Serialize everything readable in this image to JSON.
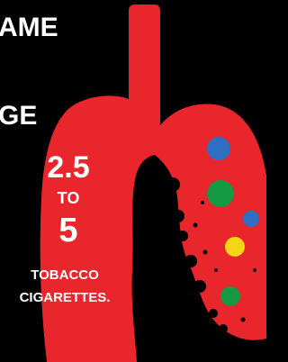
{
  "header": {
    "line1": "AME",
    "line2": "GE"
  },
  "lung_text": {
    "from": "2.5",
    "joiner": "TO",
    "to": "5",
    "unit_line1": "TOBACCO",
    "unit_line2": "CIGARETTES."
  }
}
